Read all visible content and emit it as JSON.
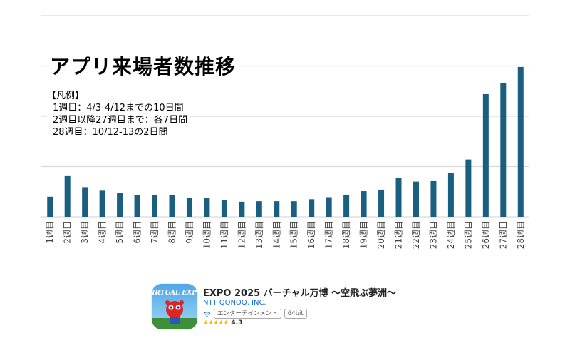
{
  "chart_data": {
    "type": "bar",
    "title": "アプリ来場者数推移",
    "legend_note": {
      "heading": "【凡例】",
      "lines": [
        "1週目：4/3-4/12までの10日間",
        "2週目以降27週目まで：各7日間",
        "28週目：10/12-13の2日間"
      ]
    },
    "categories": [
      "1週目",
      "2週目",
      "3週目",
      "4週目",
      "5週目",
      "6週目",
      "7週目",
      "8週目",
      "9週目",
      "10週目",
      "11週目",
      "12週目",
      "13週目",
      "14週目",
      "15週目",
      "16週目",
      "17週目",
      "18週目",
      "19週目",
      "20週目",
      "21週目",
      "22週目",
      "23週目",
      "24週目",
      "25週目",
      "26週目",
      "27週目",
      "28週目"
    ],
    "values": [
      0.4,
      0.81,
      0.59,
      0.52,
      0.48,
      0.43,
      0.43,
      0.43,
      0.37,
      0.37,
      0.34,
      0.3,
      0.31,
      0.31,
      0.31,
      0.35,
      0.39,
      0.43,
      0.51,
      0.54,
      0.77,
      0.7,
      0.71,
      0.87,
      1.14,
      2.44,
      2.66,
      2.98
    ],
    "ylim": [
      0,
      4
    ],
    "grid": true,
    "bar_color": "#1b5f80",
    "grid_color": "#d9d9d9"
  },
  "app": {
    "name": "EXPO 2025 バーチャル万博 ～空飛ぶ夢洲～",
    "developer": "NTT QONOQ, INC.",
    "category": "エンターテインメント",
    "arch": "64bit",
    "stars": "★★★★★",
    "rating": "4.3",
    "icon_text": "VIRTUAL EXPO"
  }
}
